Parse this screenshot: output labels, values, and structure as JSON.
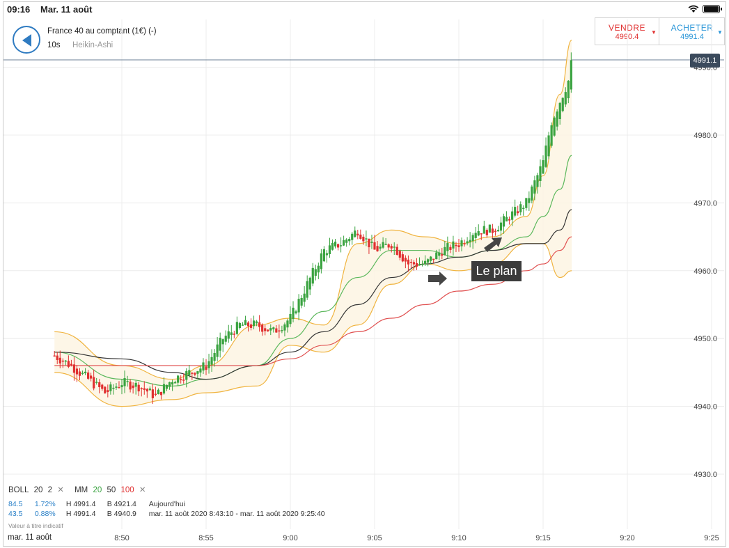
{
  "status_bar": {
    "time": "09:16",
    "date": "Mar. 11 août"
  },
  "header": {
    "instrument": "France 40 au comptant (1€) (-)",
    "interval": "10s",
    "chart_type": "Heikin-Ashi"
  },
  "trade": {
    "sell_label": "VENDRE",
    "sell_price": "4990.4",
    "buy_label": "ACHETER",
    "buy_price": "4991.4"
  },
  "legend": {
    "boll_label": "BOLL",
    "boll_period": "20",
    "boll_dev": "2",
    "ma_label": "MM",
    "ma_1": "20",
    "ma_2": "50",
    "ma_3": "100",
    "remove_glyph": "✕"
  },
  "stats": {
    "row1": {
      "pts": "84.5",
      "pct": "1.72%",
      "high": "H 4991.4",
      "low": "B 4921.4",
      "range": "Aujourd'hui"
    },
    "row2": {
      "pts": "43.5",
      "pct": "0.88%",
      "high": "H 4991.4",
      "low": "B 4940.9",
      "range": "mar. 11 août 2020 8:43:10 - mar. 11 août 2020 9:25:40"
    }
  },
  "disclaimer": "Valeur à titre indicatif",
  "x_date_label": "mar. 11 août",
  "current_price_tag": "4991.1",
  "annotation": "Le plan",
  "colors": {
    "up": "#3aa340",
    "down": "#e03030",
    "boll": "#f0b440",
    "ma20": "#5cb85c",
    "ma50": "#333333",
    "ma100": "#e05050",
    "accent": "#2f7bc1"
  },
  "chart_data": {
    "type": "candlestick",
    "title": "",
    "x_ticks": [
      "8:50",
      "8:55",
      "9:00",
      "9:05",
      "9:10",
      "9:15",
      "9:20",
      "9:25"
    ],
    "y_ticks": [
      "4930.0",
      "4940.0",
      "4950.0",
      "4960.0",
      "4970.0",
      "4980.0",
      "4990.0"
    ],
    "ylim": [
      4920,
      4998
    ],
    "x_range": [
      "8:46",
      "9:25"
    ],
    "grid": true,
    "series": [
      {
        "name": "BOLL 20 2 upper",
        "x": [
          "8:46",
          "8:50",
          "8:53",
          "8:55",
          "8:58",
          "9:00",
          "9:02",
          "9:04",
          "9:06",
          "9:08",
          "9:10",
          "9:12",
          "9:14",
          "9:15",
          "9:16",
          "9:16.7"
        ],
        "values": [
          4951,
          4946,
          4944,
          4946,
          4952,
          4953,
          4952,
          4964,
          4966,
          4965,
          4964,
          4965,
          4968,
          4974,
          4986,
          4994
        ]
      },
      {
        "name": "BOLL 20 2 lower",
        "x": [
          "8:46",
          "8:50",
          "8:53",
          "8:55",
          "8:58",
          "9:00",
          "9:02",
          "9:04",
          "9:06",
          "9:08",
          "9:10",
          "9:12",
          "9:14",
          "9:15",
          "9:16",
          "9:16.7"
        ],
        "values": [
          4945,
          4940,
          4941,
          4942,
          4943,
          4949,
          4948,
          4952,
          4958,
          4961,
          4960,
          4961,
          4964,
          4964,
          4959,
          4960
        ]
      },
      {
        "name": "MM 20",
        "x": [
          "8:46",
          "8:50",
          "8:53",
          "8:55",
          "8:58",
          "9:00",
          "9:02",
          "9:04",
          "9:06",
          "9:08",
          "9:10",
          "9:12",
          "9:14",
          "9:15",
          "9:16",
          "9:16.7"
        ],
        "values": [
          4948,
          4944,
          4943,
          4944,
          4946,
          4950,
          4954,
          4959,
          4963,
          4963,
          4962,
          4963,
          4965,
          4968,
          4972,
          4977
        ]
      },
      {
        "name": "MM 50",
        "x": [
          "8:46",
          "8:50",
          "8:53",
          "8:55",
          "8:58",
          "9:00",
          "9:02",
          "9:04",
          "9:06",
          "9:08",
          "9:10",
          "9:12",
          "9:14",
          "9:15",
          "9:16",
          "9:16.7"
        ],
        "values": [
          4948,
          4947,
          4945,
          4944,
          4946,
          4948,
          4951,
          4955,
          4959,
          4961,
          4962,
          4963,
          4964,
          4964,
          4966,
          4969
        ]
      },
      {
        "name": "MM 100",
        "x": [
          "8:46",
          "8:50",
          "8:53",
          "8:55",
          "8:58",
          "9:00",
          "9:02",
          "9:04",
          "9:06",
          "9:08",
          "9:10",
          "9:12",
          "9:14",
          "9:15",
          "9:16",
          "9:16.7"
        ],
        "values": [
          4946,
          4946,
          4946,
          4946,
          4946,
          4947,
          4949,
          4951,
          4953,
          4955,
          4957,
          4958,
          4960,
          4961,
          4963,
          4965
        ]
      },
      {
        "name": "Heikin-Ashi close",
        "x": [
          "8:46",
          "8:47",
          "8:48",
          "8:49",
          "8:50",
          "8:51",
          "8:52",
          "8:53",
          "8:54",
          "8:55",
          "8:56",
          "8:57",
          "8:58",
          "8:59",
          "9:00",
          "9:01",
          "9:02",
          "9:03",
          "9:04",
          "9:05",
          "9:06",
          "9:07",
          "9:08",
          "9:09",
          "9:10",
          "9:11",
          "9:12",
          "9:13",
          "9:14",
          "9:15",
          "9:15.5",
          "9:16",
          "9:16.5",
          "9:16.7"
        ],
        "values": [
          4947.5,
          4946,
          4944,
          4942,
          4943.5,
          4943,
          4941.5,
          4944,
          4945,
          4946,
          4950,
          4952,
          4952,
          4951,
          4953,
          4958,
          4963,
          4964,
          4966,
          4963,
          4964,
          4961,
          4961,
          4963,
          4964,
          4966,
          4966,
          4968,
          4970,
          4976,
          4982,
          4985,
          4988,
          4991
        ]
      }
    ]
  }
}
